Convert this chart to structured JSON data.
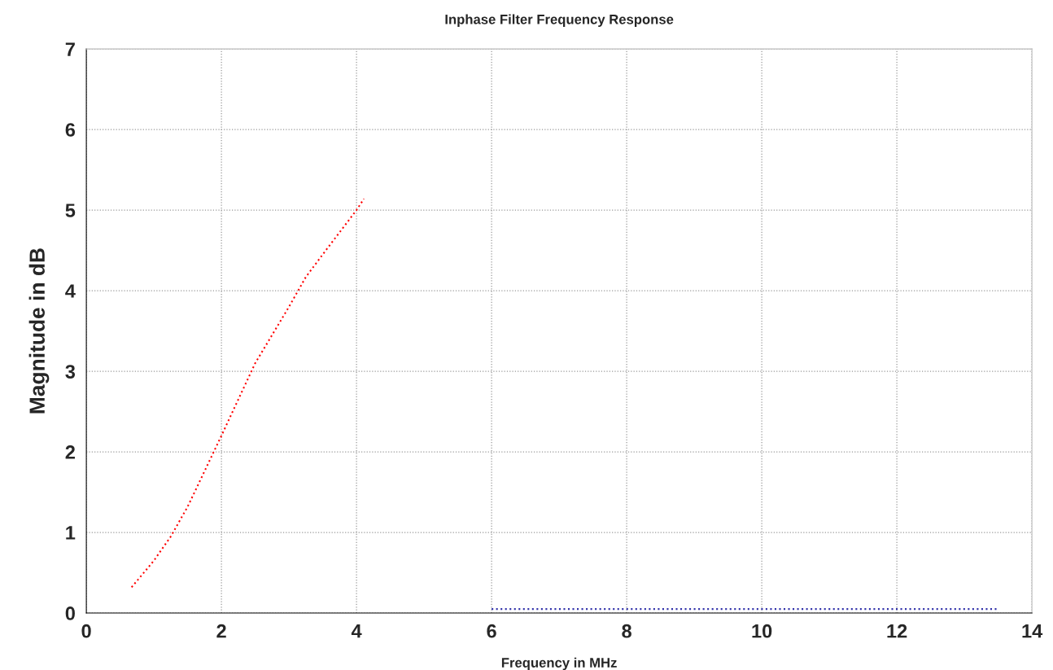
{
  "chart_data": {
    "type": "line",
    "title": "Inphase Filter Frequency Response",
    "xlabel": "Frequency in MHz",
    "ylabel": "Magnitude in dB",
    "xlim": [
      0,
      14
    ],
    "xticks": [
      0,
      2,
      4,
      6,
      8,
      10,
      12,
      14
    ],
    "ylim": [
      0,
      7
    ],
    "yticks": [
      0,
      1,
      2,
      3,
      4,
      5,
      6,
      7
    ],
    "grid": true,
    "legend": false,
    "line_style": "dotted",
    "series": [
      {
        "color": "#ff0000",
        "x": [
          0.67,
          1.0,
          1.25,
          1.5,
          2.0,
          2.5,
          3.0,
          3.25,
          3.5,
          4.0,
          4.11
        ],
        "values": [
          0.32,
          0.65,
          0.95,
          1.32,
          2.2,
          3.1,
          3.8,
          4.17,
          4.45,
          5.0,
          5.14
        ]
      },
      {
        "color": "#3333aa",
        "x": [
          6.0,
          13.5
        ],
        "values": [
          0.05,
          0.05
        ]
      }
    ]
  }
}
